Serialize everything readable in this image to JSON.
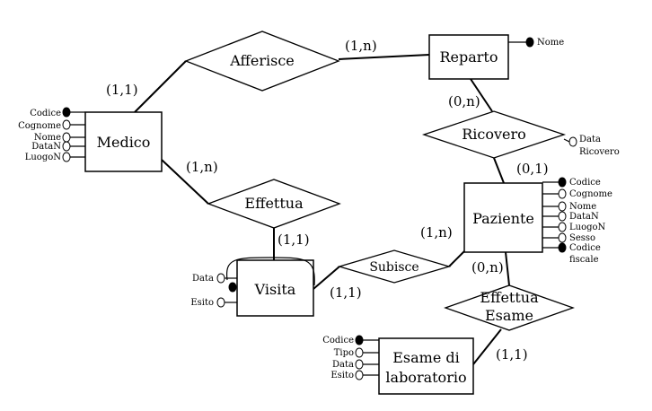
{
  "entities": {
    "medico": {
      "label": "Medico",
      "attributes": [
        "Codice",
        "Cognome",
        "Nome",
        "DataN",
        "LuogoN"
      ]
    },
    "reparto": {
      "label": "Reparto",
      "attributes": [
        "Nome"
      ]
    },
    "paziente": {
      "label": "Paziente",
      "attributes": [
        "Codice",
        "Cognome",
        "Nome",
        "DataN",
        "LuogoN",
        "Sesso",
        "Codice fiscale"
      ],
      "attribute_lines": [
        "Codice",
        "fiscale"
      ]
    },
    "visita": {
      "label": "Visita",
      "attributes": [
        "Data",
        "Esito"
      ]
    },
    "esame": {
      "label": "Esame di laboratorio",
      "label_lines": [
        "Esame di",
        "laboratorio"
      ],
      "attributes": [
        "Codice",
        "Tipo",
        "Data",
        "Esito"
      ]
    }
  },
  "relationships": {
    "afferisce": {
      "label": "Afferisce"
    },
    "ricovero": {
      "label": "Ricovero",
      "attributes": [
        "Data Ricovero"
      ],
      "attribute_lines": [
        "Data",
        "Ricovero"
      ]
    },
    "effettua": {
      "label": "Effettua"
    },
    "subisce": {
      "label": "Subisce"
    },
    "effettua_esame": {
      "label": "Effettua Esame",
      "label_lines": [
        "Effettua",
        "Esame"
      ]
    }
  },
  "cardinalities": {
    "medico_afferisce": "(1,1)",
    "reparto_afferisce": "(1,n)",
    "reparto_ricovero": "(0,n)",
    "paziente_ricovero": "(0,1)",
    "medico_effettua": "(1,n)",
    "visita_effettua": "(1,1)",
    "paziente_subisce": "(1,n)",
    "visita_subisce": "(1,1)",
    "paziente_esame": "(0,n)",
    "esame_esame": "(1,1)"
  }
}
